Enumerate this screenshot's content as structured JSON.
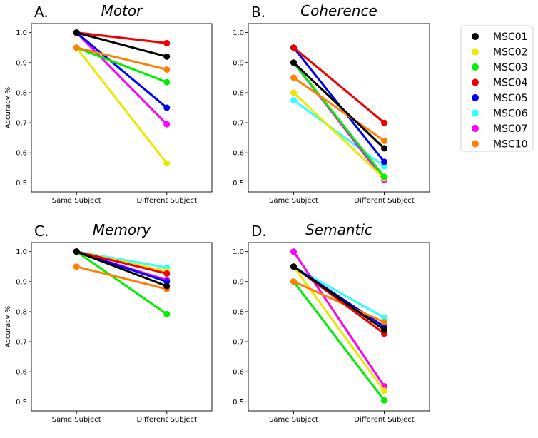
{
  "chart_data": [
    {
      "type": "line",
      "panel_letter": "A.",
      "title": "Motor",
      "categories": [
        "Same Subject",
        "Different Subject"
      ],
      "ylabel": "Accuracy %",
      "ylim": [
        0.47,
        1.03
      ],
      "yticks": [
        "0.5",
        "0.6",
        "0.7",
        "0.8",
        "0.9",
        "1.0"
      ],
      "series": [
        {
          "name": "MSC01",
          "values": [
            1.0,
            0.92
          ]
        },
        {
          "name": "MSC02",
          "values": [
            0.95,
            0.565
          ]
        },
        {
          "name": "MSC03",
          "values": [
            0.95,
            0.835
          ]
        },
        {
          "name": "MSC04",
          "values": [
            1.0,
            0.965
          ]
        },
        {
          "name": "MSC05",
          "values": [
            1.0,
            0.75
          ]
        },
        {
          "name": "MSC06",
          "values": [
            1.0,
            0.75
          ]
        },
        {
          "name": "MSC07",
          "values": [
            1.0,
            0.695
          ]
        },
        {
          "name": "MSC10",
          "values": [
            0.95,
            0.877
          ]
        }
      ]
    },
    {
      "type": "line",
      "panel_letter": "B.",
      "title": "Coherence",
      "categories": [
        "Same Subject",
        "Different Subject"
      ],
      "ylabel": "",
      "ylim": [
        0.47,
        1.03
      ],
      "yticks": [
        "0.5",
        "0.6",
        "0.7",
        "0.8",
        "0.9",
        "1.0"
      ],
      "series": [
        {
          "name": "MSC01",
          "values": [
            0.9,
            0.615
          ]
        },
        {
          "name": "MSC02",
          "values": [
            0.8,
            0.515
          ]
        },
        {
          "name": "MSC03",
          "values": [
            0.9,
            0.52
          ]
        },
        {
          "name": "MSC04",
          "values": [
            0.95,
            0.7
          ]
        },
        {
          "name": "MSC05",
          "values": [
            0.95,
            0.57
          ]
        },
        {
          "name": "MSC06",
          "values": [
            0.775,
            0.555
          ]
        },
        {
          "name": "MSC07",
          "values": [
            0.9,
            0.51
          ]
        },
        {
          "name": "MSC10",
          "values": [
            0.85,
            0.64
          ]
        }
      ]
    },
    {
      "type": "line",
      "panel_letter": "C.",
      "title": "Memory",
      "categories": [
        "Same Subject",
        "Different Subject"
      ],
      "ylabel": "Accuracy %",
      "ylim": [
        0.47,
        1.03
      ],
      "yticks": [
        "0.5",
        "0.6",
        "0.7",
        "0.8",
        "0.9",
        "1.0"
      ],
      "series": [
        {
          "name": "MSC01",
          "values": [
            1.0,
            0.885
          ]
        },
        {
          "name": "MSC02",
          "values": [
            1.0,
            0.935
          ]
        },
        {
          "name": "MSC03",
          "values": [
            1.0,
            0.792
          ]
        },
        {
          "name": "MSC04",
          "values": [
            1.0,
            0.927
          ]
        },
        {
          "name": "MSC05",
          "values": [
            1.0,
            0.9
          ]
        },
        {
          "name": "MSC06",
          "values": [
            1.0,
            0.947
          ]
        },
        {
          "name": "MSC07",
          "values": [
            1.0,
            0.905
          ]
        },
        {
          "name": "MSC10",
          "values": [
            0.95,
            0.875
          ]
        }
      ]
    },
    {
      "type": "line",
      "panel_letter": "D.",
      "title": "Semantic",
      "categories": [
        "Same Subject",
        "Different Subject"
      ],
      "ylabel": "",
      "ylim": [
        0.47,
        1.03
      ],
      "yticks": [
        "0.5",
        "0.6",
        "0.7",
        "0.8",
        "0.9",
        "1.0"
      ],
      "series": [
        {
          "name": "MSC01",
          "values": [
            0.95,
            0.74
          ]
        },
        {
          "name": "MSC02",
          "values": [
            0.95,
            0.537
          ]
        },
        {
          "name": "MSC03",
          "values": [
            0.9,
            0.505
          ]
        },
        {
          "name": "MSC04",
          "values": [
            0.95,
            0.727
          ]
        },
        {
          "name": "MSC05",
          "values": [
            0.95,
            0.75
          ]
        },
        {
          "name": "MSC06",
          "values": [
            0.95,
            0.78
          ]
        },
        {
          "name": "MSC07",
          "values": [
            1.0,
            0.552
          ]
        },
        {
          "name": "MSC10",
          "values": [
            0.9,
            0.765
          ]
        }
      ]
    }
  ],
  "legend": {
    "placement": "right",
    "entries": [
      {
        "name": "MSC01",
        "color": "#000000"
      },
      {
        "name": "MSC02",
        "color": "#e8e800"
      },
      {
        "name": "MSC03",
        "color": "#00f000"
      },
      {
        "name": "MSC04",
        "color": "#f00000"
      },
      {
        "name": "MSC05",
        "color": "#0000f0"
      },
      {
        "name": "MSC06",
        "color": "#33ffff"
      },
      {
        "name": "MSC07",
        "color": "#ff00ff"
      },
      {
        "name": "MSC10",
        "color": "#ff8000"
      }
    ]
  }
}
